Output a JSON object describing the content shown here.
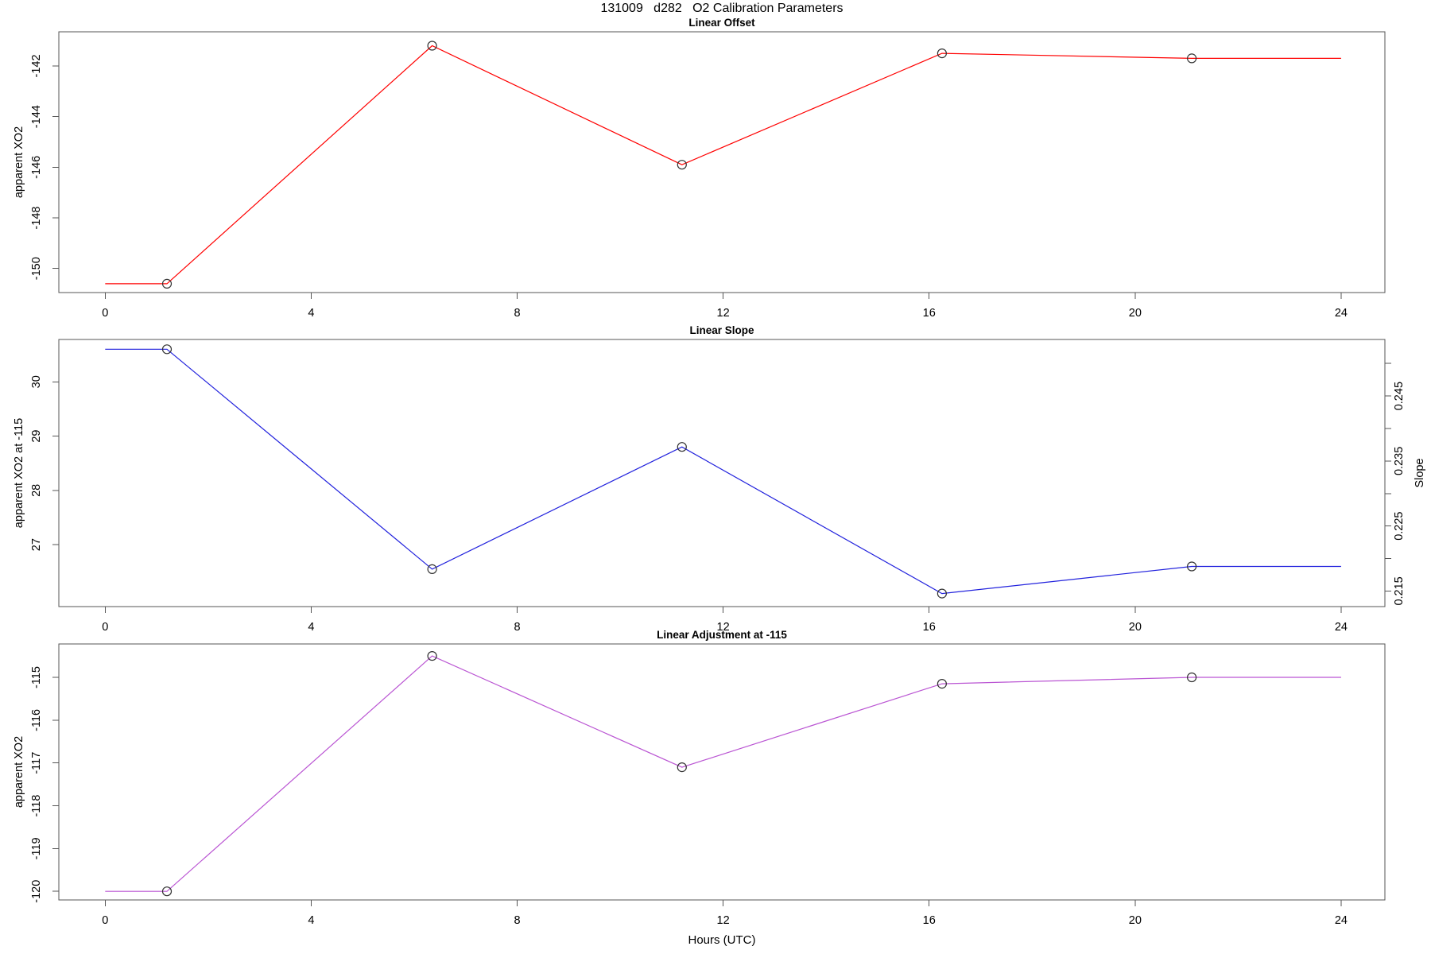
{
  "figure_title": "131009   d282   O2 Calibration Parameters",
  "xlabel": "Hours (UTC)",
  "chart_data": [
    {
      "type": "line",
      "title": "Linear Offset",
      "ylabel": "apparent XO2",
      "line_color": "#ff0000",
      "marker": "open-circle",
      "marker_color": "#333333",
      "x": [
        0,
        1.2,
        6.35,
        11.2,
        16.25,
        21.1,
        24
      ],
      "y": [
        -150.6,
        -150.6,
        -141.2,
        -145.9,
        -141.5,
        -141.7,
        -141.7
      ],
      "marker_mask": [
        0,
        1,
        1,
        1,
        1,
        1,
        0
      ],
      "xlim": [
        -0.9,
        24.85
      ],
      "xticks": [
        {
          "value": 0,
          "label": "0"
        },
        {
          "value": 4,
          "label": "4"
        },
        {
          "value": 8,
          "label": "8"
        },
        {
          "value": 12,
          "label": "12"
        },
        {
          "value": 16,
          "label": "16"
        },
        {
          "value": 20,
          "label": "20"
        },
        {
          "value": 24,
          "label": "24"
        }
      ],
      "ylim": [
        -150.95,
        -140.65
      ],
      "yticks": [
        {
          "value": -150,
          "label": "-150"
        },
        {
          "value": -148,
          "label": "-148"
        },
        {
          "value": -146,
          "label": "-146"
        },
        {
          "value": -144,
          "label": "-144"
        },
        {
          "value": -142,
          "label": "-142"
        }
      ],
      "grid": false
    },
    {
      "type": "line",
      "title": "Linear Slope",
      "ylabel": "apparent XO2 at -115",
      "line_color": "#2222dd",
      "marker": "open-circle",
      "marker_color": "#333333",
      "x": [
        0,
        1.2,
        6.35,
        11.2,
        16.25,
        21.1,
        24
      ],
      "y": [
        30.6,
        30.6,
        26.55,
        28.8,
        26.1,
        26.6,
        26.6
      ],
      "marker_mask": [
        0,
        1,
        1,
        1,
        1,
        1,
        0
      ],
      "xlim": [
        -0.9,
        24.85
      ],
      "xticks": [
        {
          "value": 0,
          "label": "0"
        },
        {
          "value": 4,
          "label": "4"
        },
        {
          "value": 8,
          "label": "8"
        },
        {
          "value": 12,
          "label": "12"
        },
        {
          "value": 16,
          "label": "16"
        },
        {
          "value": 20,
          "label": "20"
        },
        {
          "value": 24,
          "label": "24"
        }
      ],
      "ylim": [
        25.86,
        30.78
      ],
      "yticks": [
        {
          "value": 27,
          "label": "27"
        },
        {
          "value": 28,
          "label": "28"
        },
        {
          "value": 29,
          "label": "29"
        },
        {
          "value": 30,
          "label": "30"
        }
      ],
      "right_axis": {
        "label": "Slope",
        "ylim": [
          0.2126,
          0.2537
        ],
        "ticks": [
          {
            "value": 0.215,
            "label": "0.215"
          },
          {
            "value": 0.22,
            "label": ""
          },
          {
            "value": 0.225,
            "label": "0.225"
          },
          {
            "value": 0.23,
            "label": ""
          },
          {
            "value": 0.235,
            "label": "0.235"
          },
          {
            "value": 0.24,
            "label": ""
          },
          {
            "value": 0.245,
            "label": "0.245"
          },
          {
            "value": 0.25,
            "label": ""
          }
        ]
      },
      "grid": false
    },
    {
      "type": "line",
      "title": "Linear Adjustment at -115",
      "ylabel": "apparent XO2",
      "line_color": "#ba55d3",
      "marker": "open-circle",
      "marker_color": "#333333",
      "x": [
        0,
        1.2,
        6.35,
        11.2,
        16.25,
        21.1,
        24
      ],
      "y": [
        -120.0,
        -120.0,
        -114.5,
        -117.1,
        -115.15,
        -115.0,
        -115.0
      ],
      "marker_mask": [
        0,
        1,
        1,
        1,
        1,
        1,
        0
      ],
      "xlim": [
        -0.9,
        24.85
      ],
      "xticks": [
        {
          "value": 0,
          "label": "0"
        },
        {
          "value": 4,
          "label": "4"
        },
        {
          "value": 8,
          "label": "8"
        },
        {
          "value": 12,
          "label": "12"
        },
        {
          "value": 16,
          "label": "16"
        },
        {
          "value": 20,
          "label": "20"
        },
        {
          "value": 24,
          "label": "24"
        }
      ],
      "ylim": [
        -120.2,
        -114.22
      ],
      "yticks": [
        {
          "value": -120,
          "label": "-120"
        },
        {
          "value": -119,
          "label": "-119"
        },
        {
          "value": -118,
          "label": "-118"
        },
        {
          "value": -117,
          "label": "-117"
        },
        {
          "value": -116,
          "label": "-116"
        },
        {
          "value": -115,
          "label": "-115"
        }
      ],
      "grid": false
    }
  ]
}
